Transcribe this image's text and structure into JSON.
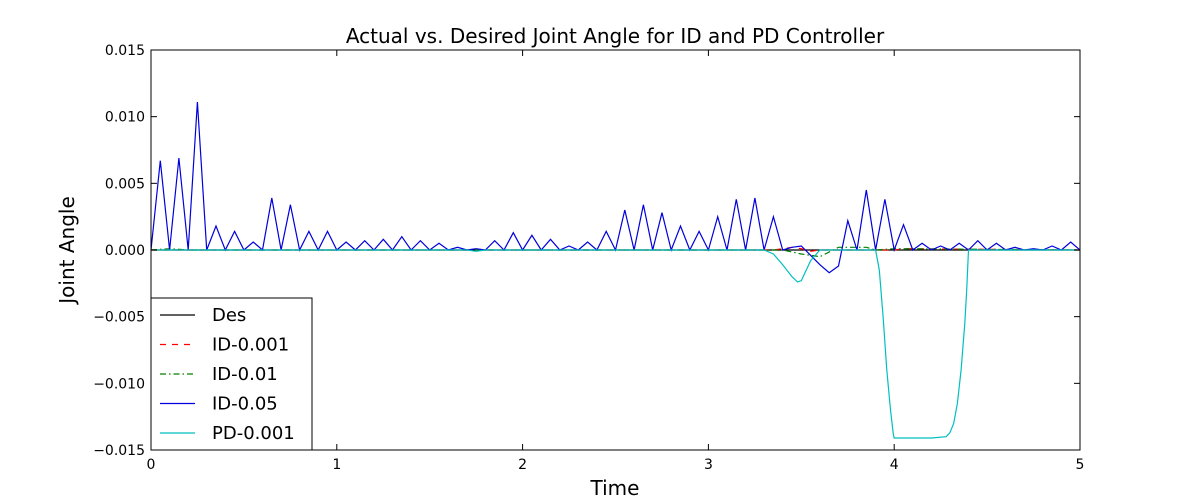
{
  "chart_data": {
    "type": "line",
    "title": "Actual vs. Desired Joint Angle for ID and PD Controller",
    "xlabel": "Time",
    "ylabel": "Joint Angle",
    "xlim": [
      0,
      5
    ],
    "ylim": [
      -0.015,
      0.015
    ],
    "xticks": [
      0,
      1,
      2,
      3,
      4,
      5
    ],
    "yticks": [
      -0.015,
      -0.01,
      -0.005,
      0.0,
      0.005,
      0.01,
      0.015
    ],
    "xtick_labels": [
      "0",
      "1",
      "2",
      "3",
      "4",
      "5"
    ],
    "ytick_labels": [
      "−0.015",
      "−0.010",
      "−0.005",
      "0.000",
      "0.005",
      "0.010",
      "0.015"
    ],
    "grid": false,
    "legend_position": "lower-left",
    "series": [
      {
        "name": "Des",
        "color": "#000000",
        "style": "solid",
        "x": [
          0,
          5
        ],
        "y": [
          0,
          0
        ]
      },
      {
        "name": "ID-0.001",
        "color": "#ff0000",
        "style": "dashed",
        "x": [
          0,
          3.35,
          3.45,
          3.5,
          3.55,
          3.6,
          4.0,
          4.05,
          5
        ],
        "y": [
          0,
          0,
          0.0002,
          0.0001,
          -0.0001,
          0.0,
          0.0,
          0.0001,
          0.0
        ]
      },
      {
        "name": "ID-0.01",
        "color": "#008000",
        "style": "dashdot",
        "x": [
          0,
          0.1,
          0.2,
          3.4,
          3.5,
          3.55,
          3.6,
          3.7,
          3.85,
          3.9,
          4.0,
          5
        ],
        "y": [
          0,
          0.0001,
          0,
          0.0,
          -0.0003,
          -0.0004,
          -0.0005,
          0.0002,
          0.0002,
          0.0,
          0.0001,
          0.0
        ]
      },
      {
        "name": "ID-0.05",
        "color": "#0000dd",
        "style": "solid",
        "x": [
          0,
          0.05,
          0.1,
          0.15,
          0.2,
          0.25,
          0.3,
          0.35,
          0.4,
          0.45,
          0.5,
          0.55,
          0.6,
          0.65,
          0.7,
          0.75,
          0.8,
          0.85,
          0.9,
          0.95,
          1.0,
          1.05,
          1.1,
          1.15,
          1.2,
          1.25,
          1.3,
          1.35,
          1.4,
          1.45,
          1.5,
          1.55,
          1.6,
          1.65,
          1.7,
          1.75,
          1.8,
          1.85,
          1.9,
          1.95,
          2.0,
          2.05,
          2.1,
          2.15,
          2.2,
          2.25,
          2.3,
          2.35,
          2.4,
          2.45,
          2.5,
          2.55,
          2.6,
          2.65,
          2.7,
          2.75,
          2.8,
          2.85,
          2.9,
          2.95,
          3.0,
          3.05,
          3.1,
          3.15,
          3.2,
          3.25,
          3.3,
          3.35,
          3.4,
          3.45,
          3.5,
          3.55,
          3.6,
          3.65,
          3.7,
          3.75,
          3.8,
          3.85,
          3.9,
          3.95,
          4.0,
          4.05,
          4.1,
          4.15,
          4.2,
          4.25,
          4.3,
          4.35,
          4.4,
          4.45,
          4.5,
          4.55,
          4.6,
          4.65,
          4.7,
          4.75,
          4.8,
          4.85,
          4.9,
          4.95,
          5.0
        ],
        "y": [
          0,
          0.0067,
          0,
          0.0069,
          0,
          0.0111,
          0,
          0.0018,
          0,
          0.0014,
          0,
          0.0006,
          0,
          0.0039,
          0,
          0.0034,
          0,
          0.0014,
          0,
          0.0014,
          0,
          0.0006,
          0,
          0.0007,
          0,
          0.0008,
          0,
          0.001,
          0,
          0.0007,
          0,
          0.0005,
          0,
          0.0002,
          0,
          0.0001,
          0,
          0.0007,
          0,
          0.0013,
          0,
          0.0011,
          0,
          0.0008,
          0,
          0.0003,
          0,
          0.0006,
          0,
          0.0014,
          0,
          0.003,
          0,
          0.0034,
          0,
          0.0028,
          0,
          0.0018,
          0,
          0.0014,
          0,
          0.0025,
          0,
          0.0038,
          0,
          0.0039,
          0,
          0.0025,
          0,
          0.0002,
          0.0003,
          -0.0004,
          -0.0011,
          -0.0017,
          -0.0012,
          0.0022,
          0,
          0.0045,
          0,
          0.0038,
          0,
          0.0019,
          0,
          0.0005,
          0,
          0.0003,
          0,
          0.0005,
          0,
          0.0007,
          0,
          0.0005,
          0,
          0.0002,
          0,
          0.0001,
          0,
          0.0003,
          0,
          0.0006,
          0
        ]
      },
      {
        "name": "PD-0.001",
        "color": "#00bfbf",
        "style": "solid",
        "x": [
          0,
          1.7,
          1.75,
          1.8,
          3.3,
          3.35,
          3.4,
          3.45,
          3.48,
          3.5,
          3.52,
          3.55,
          3.6,
          3.9,
          3.92,
          3.94,
          3.96,
          3.98,
          3.995,
          4.0,
          4.05,
          4.2,
          4.28,
          4.3,
          4.32,
          4.34,
          4.36,
          4.38,
          4.39,
          4.4,
          5.0
        ],
        "y": [
          0,
          0,
          -0.0001,
          0,
          0,
          -0.0003,
          -0.0011,
          -0.002,
          -0.0024,
          -0.0023,
          -0.0017,
          -0.0008,
          0,
          0,
          -0.0015,
          -0.005,
          -0.009,
          -0.012,
          -0.0138,
          -0.0141,
          -0.0141,
          -0.0141,
          -0.014,
          -0.0137,
          -0.013,
          -0.0115,
          -0.009,
          -0.0055,
          -0.003,
          0,
          0
        ]
      }
    ]
  }
}
